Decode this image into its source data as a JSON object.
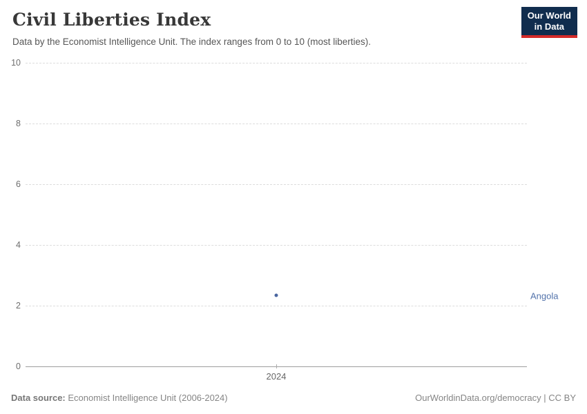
{
  "header": {
    "title": "Civil Liberties Index",
    "subtitle": "Data by the Economist Intelligence Unit. The index ranges from 0 to 10 (most liberties).",
    "logo": {
      "line1": "Our World",
      "line2": "in Data"
    }
  },
  "chart_data": {
    "type": "scatter",
    "title": "Civil Liberties Index",
    "x": [
      2024
    ],
    "series": [
      {
        "name": "Angola",
        "values": [
          2.35
        ],
        "color": "#4a66a0",
        "label_color": "#5373ab"
      }
    ],
    "ylim": [
      0,
      10
    ],
    "yticks": [
      0,
      2,
      4,
      6,
      8,
      10
    ],
    "xticks": [
      "2024"
    ],
    "grid": "horizontal-dashed",
    "legend_position": "right-entity-label"
  },
  "footer": {
    "datasource_label": "Data source:",
    "datasource_value": " Economist Intelligence Unit (2006-2024)",
    "rights": "OurWorldinData.org/democracy | CC BY"
  }
}
